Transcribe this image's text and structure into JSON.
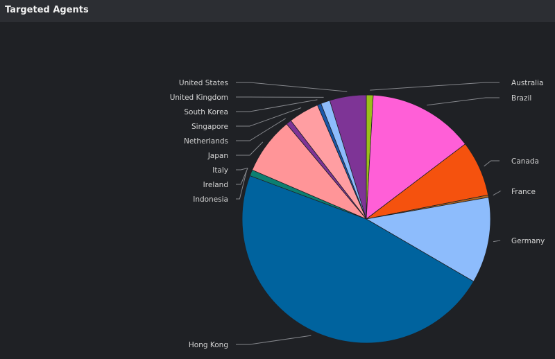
{
  "panel": {
    "title": "Targeted Agents"
  },
  "chart_data": {
    "type": "pie",
    "slices": [
      {
        "label": "Australia",
        "value": 0.9,
        "color": "#9bbf1a"
      },
      {
        "label": "Brazil",
        "value": 13.9,
        "color": "#ff5fd7"
      },
      {
        "label": "Canada",
        "value": 7.3,
        "color": "#f5520e"
      },
      {
        "label": "France",
        "value": 0.3,
        "color": "#b0661f"
      },
      {
        "label": "Germany",
        "value": 11.3,
        "color": "#8dbcfc"
      },
      {
        "label": "Hong Kong",
        "value": 47.7,
        "color": "#00639e"
      },
      {
        "label": "Indonesia",
        "value": 0.8,
        "color": "#0c7f71"
      },
      {
        "label": "Ireland",
        "value": 0.0,
        "color": "#d6565a"
      },
      {
        "label": "Italy",
        "value": 0.0,
        "color": "#ff8c8f"
      },
      {
        "label": "Japan",
        "value": 7.5,
        "color": "#ff9598"
      },
      {
        "label": "Netherlands",
        "value": 0.7,
        "color": "#7e3496"
      },
      {
        "label": "Singapore",
        "value": 4.0,
        "color": "#ff9ea2"
      },
      {
        "label": "South Korea",
        "value": 0.5,
        "color": "#1a56a8"
      },
      {
        "label": "United Kingdom",
        "value": 1.2,
        "color": "#8dbcfc"
      },
      {
        "label": "United States",
        "value": 4.8,
        "color": "#7e3496"
      }
    ]
  }
}
